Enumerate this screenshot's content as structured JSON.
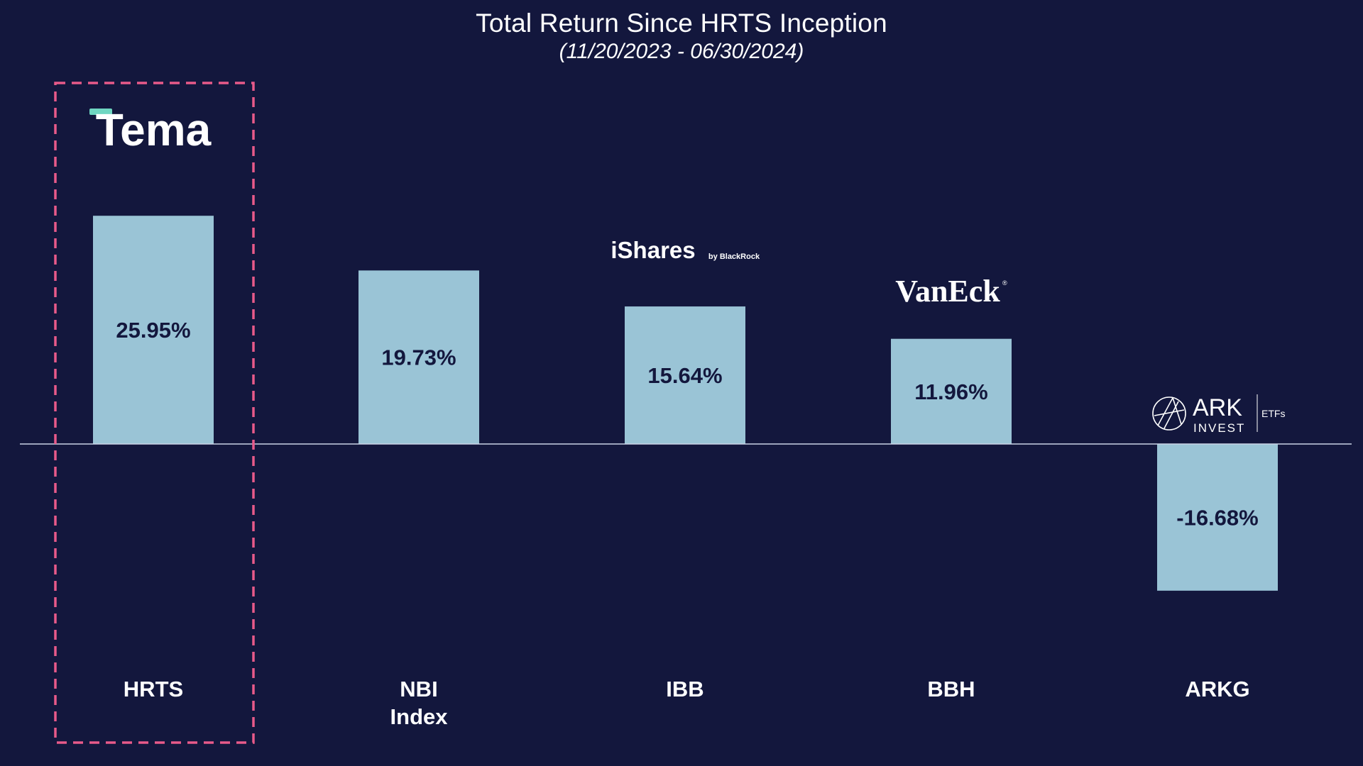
{
  "chart_data": {
    "type": "bar",
    "title": "Total Return Since HRTS Inception",
    "subtitle": "(11/20/2023 - 06/30/2024)",
    "categories": [
      "HRTS",
      "NBI Index",
      "IBB",
      "BBH",
      "ARKG"
    ],
    "category_lines": [
      [
        "HRTS"
      ],
      [
        "NBI",
        "Index"
      ],
      [
        "IBB"
      ],
      [
        "BBH"
      ],
      [
        "ARKG"
      ]
    ],
    "values": [
      25.95,
      19.73,
      15.64,
      11.96,
      -16.68
    ],
    "data_labels": [
      "25.95%",
      "19.73%",
      "15.64%",
      "11.96%",
      "-16.68%"
    ],
    "highlighted_category": "HRTS",
    "ylim": [
      -26,
      26
    ],
    "grid": false,
    "legend": "none"
  },
  "logos": {
    "tema": "Tema",
    "ishares": "iShares",
    "ishares_sub": "by BlackRock",
    "vaneck": "VanEck",
    "vaneck_mark": "®",
    "ark": "ARK",
    "ark_invest": "INVEST",
    "ark_etfs": "ETFs"
  },
  "colors": {
    "background": "#13173d",
    "bar": "#9ac4d6",
    "highlight_box": "#e85a8a",
    "tema_accent": "#6fd6c1",
    "text": "#ffffff",
    "bar_label": "#13173d"
  }
}
